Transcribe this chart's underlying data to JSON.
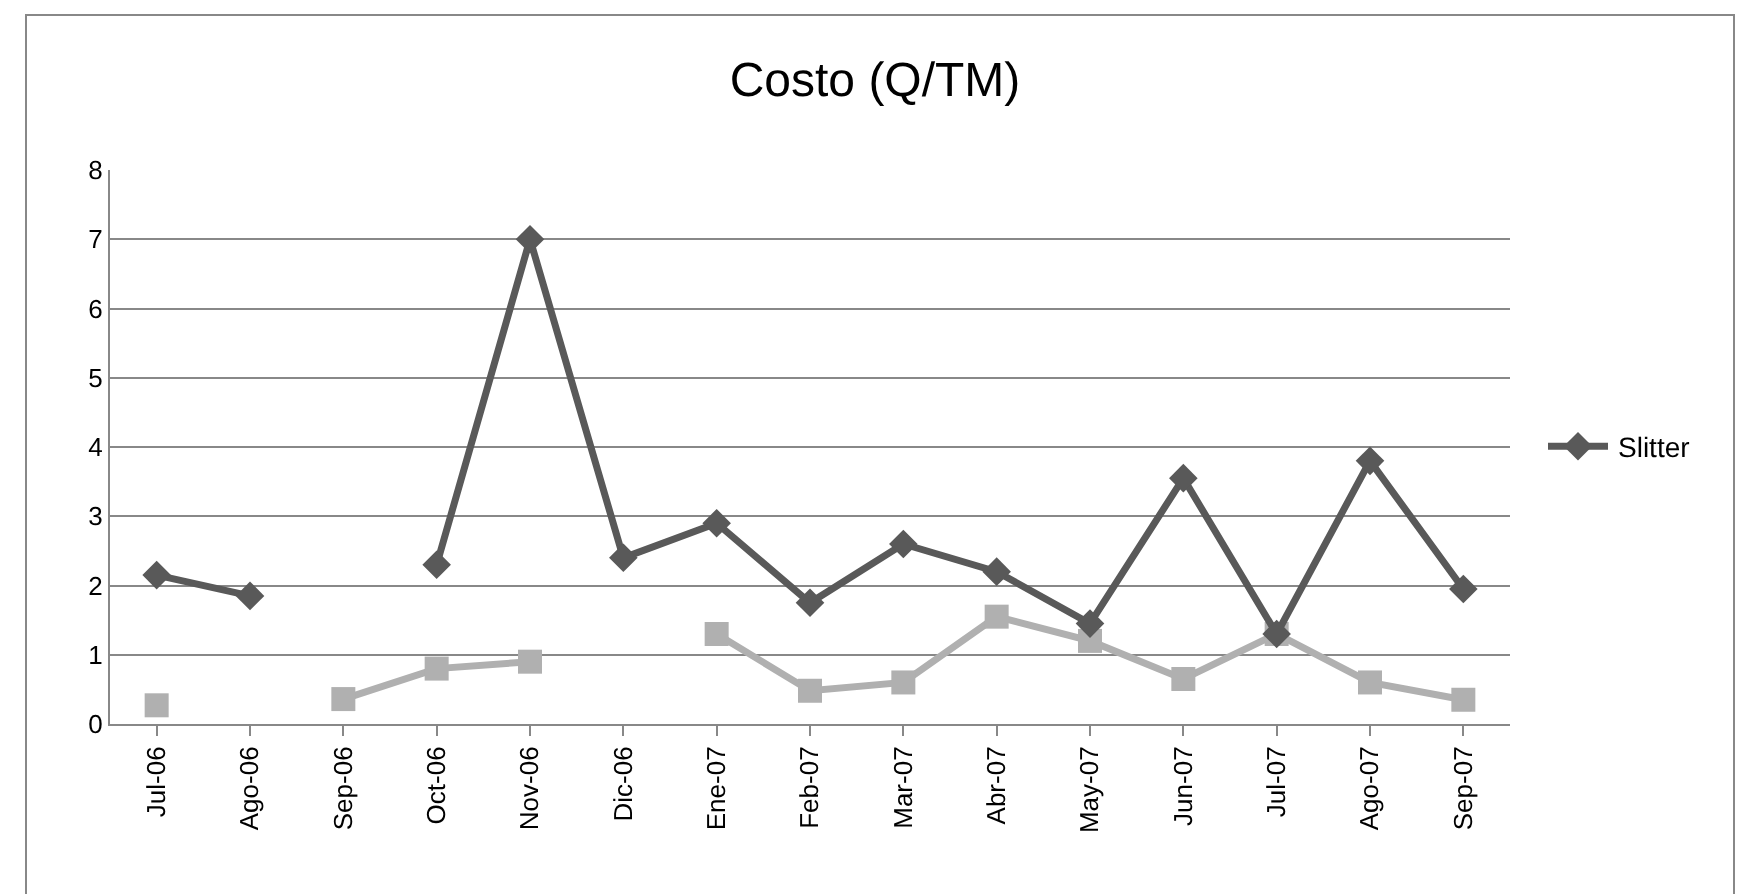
{
  "chart_data": {
    "type": "line",
    "title": "Costo (Q/TM)",
    "categories": [
      "Jul-06",
      "Ago-06",
      "Sep-06",
      "Oct-06",
      "Nov-06",
      "Dic-06",
      "Ene-07",
      "Feb-07",
      "Mar-07",
      "Abr-07",
      "May-07",
      "Jun-07",
      "Jul-07",
      "Ago-07",
      "Sep-07"
    ],
    "series": [
      {
        "name": "Slitter",
        "color": "#595959",
        "marker": "diamond",
        "values": [
          2.15,
          1.85,
          null,
          2.3,
          7.0,
          2.4,
          2.9,
          1.75,
          2.6,
          2.2,
          1.45,
          3.55,
          1.3,
          3.8,
          1.95
        ]
      },
      {
        "color": "#b0b0b0",
        "marker": "square",
        "values": [
          0.27,
          null,
          0.36,
          0.8,
          0.9,
          null,
          1.3,
          0.48,
          0.6,
          1.55,
          1.2,
          0.65,
          1.3,
          0.6,
          0.35
        ]
      }
    ],
    "ylim": [
      0,
      8
    ],
    "yticks": [
      0,
      1,
      2,
      3,
      4,
      5,
      6,
      7,
      8
    ],
    "grid": "y",
    "legend": "right",
    "line_style": "solid"
  }
}
